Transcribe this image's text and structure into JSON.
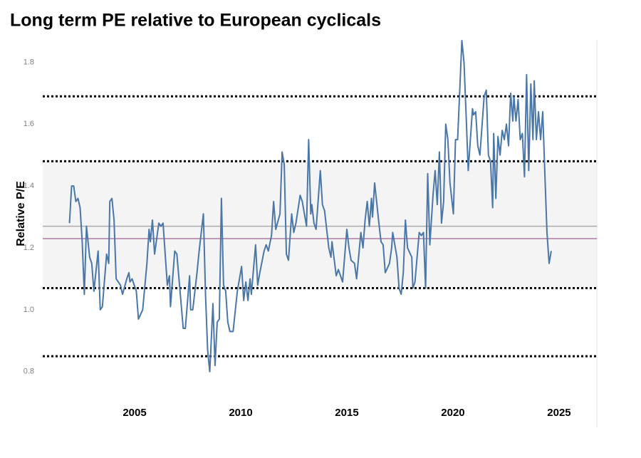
{
  "chart_data": {
    "type": "line",
    "title": "Long term PE relative to European cyclicals",
    "y_label": "Relative P/E",
    "color": "#4a76a8",
    "xlim": [
      2000.67,
      2026.78
    ],
    "xticks": [
      2005,
      2010,
      2015,
      2020,
      2025
    ],
    "ylim": [
      0.62,
      1.87
    ],
    "yticks": [
      0.8,
      {
        "value": 1,
        "label": "1.0"
      },
      1.2,
      1.4,
      1.6,
      1.8
    ],
    "band": {
      "range": [
        1.07,
        1.48
      ],
      "color": "#f4f4f4"
    },
    "reference_lines": [
      {
        "value": 1.69,
        "color": "#000000",
        "dotted": true
      },
      {
        "value": 1.48,
        "color": "#000000",
        "dotted": true
      },
      {
        "value": 1.07,
        "color": "#000000",
        "dotted": true
      },
      {
        "value": 0.85,
        "color": "#000000",
        "dotted": true
      },
      {
        "value": 1.27,
        "color": "#aaaaaa",
        "dotted": false
      },
      {
        "value": 1.23,
        "color": "#b07aa1",
        "dotted": false
      }
    ],
    "x": [
      2001.93,
      2002.03,
      2002.13,
      2002.23,
      2002.33,
      2002.43,
      2002.53,
      2002.63,
      2002.73,
      2002.88,
      2002.98,
      2003.08,
      2003.28,
      2003.38,
      2003.48,
      2003.68,
      2003.78,
      2003.83,
      2003.93,
      2004.03,
      2004.13,
      2004.33,
      2004.43,
      2004.63,
      2004.73,
      2004.78,
      2004.88,
      2005.08,
      2005.18,
      2005.38,
      2005.58,
      2005.68,
      2005.74,
      2005.84,
      2005.94,
      2006.14,
      2006.24,
      2006.34,
      2006.54,
      2006.64,
      2006.69,
      2006.89,
      2006.99,
      2007.09,
      2007.29,
      2007.39,
      2007.59,
      2007.64,
      2007.74,
      2007.94,
      2008.04,
      2008.24,
      2008.34,
      2008.44,
      2008.54,
      2008.59,
      2008.69,
      2008.79,
      2008.89,
      2008.99,
      2009.09,
      2009.19,
      2009.29,
      2009.39,
      2009.49,
      2009.64,
      2009.84,
      2010.04,
      2010.14,
      2010.24,
      2010.34,
      2010.44,
      2010.5,
      2010.7,
      2010.8,
      2010.9,
      2011.1,
      2011.2,
      2011.3,
      2011.45,
      2011.55,
      2011.65,
      2011.85,
      2011.95,
      2012.05,
      2012.15,
      2012.25,
      2012.4,
      2012.5,
      2012.6,
      2012.8,
      2012.9,
      2013.1,
      2013.2,
      2013.3,
      2013.35,
      2013.45,
      2013.55,
      2013.75,
      2013.85,
      2013.95,
      2014.15,
      2014.25,
      2014.3,
      2014.5,
      2014.6,
      2014.8,
      2015.0,
      2015.1,
      2015.2,
      2015.36,
      2015.46,
      2015.66,
      2015.76,
      2015.86,
      2015.96,
      2016.06,
      2016.16,
      2016.21,
      2016.31,
      2016.51,
      2016.61,
      2016.71,
      2016.81,
      2017.01,
      2017.11,
      2017.16,
      2017.36,
      2017.46,
      2017.56,
      2017.66,
      2017.76,
      2017.86,
      2018.06,
      2018.11,
      2018.21,
      2018.41,
      2018.51,
      2018.61,
      2018.71,
      2018.81,
      2018.91,
      2019.06,
      2019.16,
      2019.26,
      2019.36,
      2019.46,
      2019.56,
      2019.66,
      2019.76,
      2019.86,
      2020.02,
      2020.12,
      2020.22,
      2020.42,
      2020.52,
      2020.62,
      2020.72,
      2020.82,
      2020.92,
      2020.97,
      2021.07,
      2021.17,
      2021.27,
      2021.47,
      2021.57,
      2021.67,
      2021.77,
      2021.87,
      2021.92,
      2022.02,
      2022.12,
      2022.22,
      2022.32,
      2022.42,
      2022.52,
      2022.62,
      2022.72,
      2022.82,
      2022.87,
      2022.97,
      2023.07,
      2023.17,
      2023.27,
      2023.37,
      2023.47,
      2023.57,
      2023.67,
      2023.77,
      2023.83,
      2023.93,
      2024.03,
      2024.13,
      2024.23,
      2024.33,
      2024.43,
      2024.53,
      2024.63
    ],
    "values": [
      1.28,
      1.4,
      1.4,
      1.35,
      1.36,
      1.33,
      1.22,
      1.05,
      1.27,
      1.17,
      1.15,
      1.06,
      1.19,
      1.0,
      1.01,
      1.18,
      1.15,
      1.35,
      1.36,
      1.29,
      1.1,
      1.08,
      1.05,
      1.1,
      1.12,
      1.09,
      1.1,
      1.06,
      0.97,
      1.0,
      1.15,
      1.26,
      1.22,
      1.29,
      1.18,
      1.28,
      1.27,
      1.28,
      1.08,
      1.11,
      1.01,
      1.19,
      1.18,
      1.1,
      0.94,
      0.94,
      1.11,
      1.0,
      1.0,
      1.12,
      1.19,
      1.31,
      1.05,
      0.87,
      0.8,
      0.87,
      1.02,
      0.82,
      0.96,
      0.97,
      1.36,
      1.08,
      1.06,
      0.96,
      0.93,
      0.93,
      1.06,
      1.14,
      1.03,
      1.09,
      1.03,
      1.1,
      1.05,
      1.21,
      1.08,
      1.12,
      1.19,
      1.21,
      1.19,
      1.24,
      1.35,
      1.26,
      1.31,
      1.51,
      1.47,
      1.18,
      1.16,
      1.31,
      1.25,
      1.28,
      1.37,
      1.35,
      1.27,
      1.55,
      1.31,
      1.34,
      1.28,
      1.26,
      1.45,
      1.34,
      1.32,
      1.2,
      1.17,
      1.22,
      1.11,
      1.13,
      1.09,
      1.26,
      1.2,
      1.16,
      1.15,
      1.1,
      1.25,
      1.2,
      1.29,
      1.35,
      1.27,
      1.36,
      1.3,
      1.41,
      1.28,
      1.22,
      1.21,
      1.12,
      1.15,
      1.2,
      1.25,
      1.17,
      1.07,
      1.05,
      1.12,
      1.29,
      1.2,
      1.17,
      1.07,
      1.09,
      1.25,
      1.24,
      1.25,
      1.07,
      1.44,
      1.21,
      1.37,
      1.45,
      1.34,
      1.51,
      1.28,
      1.35,
      1.6,
      1.55,
      1.41,
      1.31,
      1.55,
      1.55,
      1.87,
      1.8,
      1.63,
      1.45,
      1.55,
      1.65,
      1.63,
      1.64,
      1.53,
      1.5,
      1.69,
      1.71,
      1.5,
      1.48,
      1.33,
      1.57,
      1.36,
      1.56,
      1.5,
      1.58,
      1.55,
      1.6,
      1.53,
      1.7,
      1.61,
      1.69,
      1.61,
      1.68,
      1.55,
      1.57,
      1.43,
      1.76,
      1.45,
      1.73,
      1.55,
      1.74,
      1.55,
      1.64,
      1.55,
      1.64,
      1.44,
      1.25,
      1.15,
      1.19
    ]
  }
}
